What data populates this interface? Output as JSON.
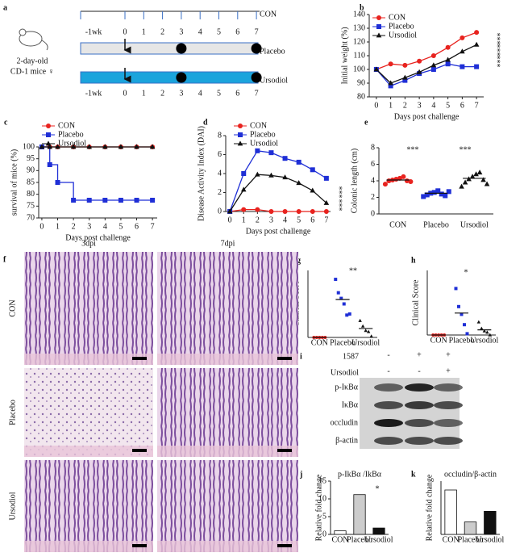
{
  "timeline": {
    "label": "a",
    "mouse": [
      "2-day-old",
      "CD-1 mice ♀"
    ],
    "days": [
      "-1wk",
      "0",
      "1",
      "2",
      "3",
      "4",
      "5",
      "6",
      "7"
    ],
    "groups": [
      {
        "name": "CON"
      },
      {
        "name": "Placebo",
        "dots": [
          3,
          7
        ]
      },
      {
        "name": "Ursodiol",
        "dots": [
          3,
          7
        ]
      }
    ]
  },
  "chart_data": [
    {
      "label": "b",
      "type": "line",
      "ylabel": "Initial weight (%)",
      "xlabel": "Days post challenge",
      "x": [
        0,
        1,
        2,
        3,
        4,
        5,
        6,
        7
      ],
      "xlim": [
        -0.5,
        7.5
      ],
      "xticks": [
        0,
        1,
        2,
        3,
        4,
        5,
        6,
        7
      ],
      "ylim": [
        80,
        140
      ],
      "yticks": [
        80,
        90,
        100,
        110,
        120,
        130,
        140
      ],
      "legend": "upper left",
      "annotations": [
        "***",
        "***",
        "***"
      ],
      "series": [
        {
          "name": "CON",
          "color": "#e8231f",
          "marker": "circle",
          "values": [
            100,
            104,
            103,
            106,
            110,
            116,
            123,
            127
          ]
        },
        {
          "name": "Placebo",
          "color": "#1f2fd6",
          "marker": "square",
          "values": [
            100,
            88,
            92,
            97,
            100,
            104,
            102,
            102
          ]
        },
        {
          "name": "Ursodiol",
          "color": "#111111",
          "marker": "triangle",
          "values": [
            100,
            90,
            94,
            98,
            103,
            107,
            113,
            118
          ]
        }
      ]
    },
    {
      "label": "c",
      "type": "line",
      "step": true,
      "ylabel": "survival of mice (%)",
      "xlabel": "Days post challenge",
      "x": [
        0,
        0.5,
        1,
        2,
        3,
        4,
        5,
        6,
        7
      ],
      "xlim": [
        -0.2,
        7.3
      ],
      "xticks": [
        0,
        1,
        2,
        3,
        4,
        5,
        6,
        7
      ],
      "ylim": [
        70,
        100
      ],
      "yticks": [
        70,
        75,
        80,
        85,
        90,
        95,
        100
      ],
      "legend": "upper left",
      "series": [
        {
          "name": "CON",
          "color": "#e8231f",
          "marker": "circle",
          "values": [
            100,
            100,
            100,
            100,
            100,
            100,
            100,
            100,
            100
          ]
        },
        {
          "name": "Placebo",
          "color": "#1f2fd6",
          "marker": "square",
          "values": [
            100,
            92.5,
            85,
            77.5,
            77.5,
            77.5,
            77.5,
            77.5,
            77.5
          ]
        },
        {
          "name": "Ursodiol",
          "color": "#111111",
          "marker": "triangle",
          "values": [
            100,
            100,
            100,
            100,
            100,
            100,
            100,
            100,
            100
          ]
        }
      ]
    },
    {
      "label": "d",
      "type": "line",
      "ylabel": "Disease Activity Index (DAI)",
      "xlabel": "Days post challenge",
      "x": [
        0,
        1,
        2,
        3,
        4,
        5,
        6,
        7
      ],
      "xlim": [
        -0.3,
        7.3
      ],
      "xticks": [
        0,
        1,
        2,
        3,
        4,
        5,
        6,
        7
      ],
      "ylim": [
        0,
        8
      ],
      "yticks": [
        0,
        2,
        4,
        6,
        8
      ],
      "legend": "upper left",
      "annotations": [
        "***",
        "***"
      ],
      "series": [
        {
          "name": "CON",
          "color": "#e8231f",
          "marker": "circle",
          "values": [
            0,
            0.2,
            0.2,
            0,
            0,
            0,
            0,
            0
          ]
        },
        {
          "name": "Placebo",
          "color": "#1f2fd6",
          "marker": "square",
          "values": [
            0,
            4,
            6.4,
            6.2,
            5.6,
            5.2,
            4.4,
            3.5
          ]
        },
        {
          "name": "Ursodiol",
          "color": "#111111",
          "marker": "triangle",
          "values": [
            0,
            2.3,
            3.9,
            3.8,
            3.6,
            3.0,
            2.2,
            0.9
          ]
        }
      ]
    },
    {
      "label": "e",
      "type": "dot_plot",
      "ylabel": "Colonic length (cm)",
      "categories": [
        "CON",
        "Placebo",
        "Ursodiol"
      ],
      "ylim": [
        0,
        8
      ],
      "yticks": [
        0,
        2,
        4,
        6,
        8
      ],
      "colors": [
        "#e8231f",
        "#1f2fd6",
        "#111111"
      ],
      "markers": [
        "circle",
        "square",
        "triangle"
      ],
      "points": [
        [
          3.6,
          4.0,
          4.1,
          4.2,
          4.3,
          4.5,
          4.0,
          3.9
        ],
        [
          2.1,
          2.3,
          2.5,
          2.6,
          2.8,
          2.4,
          2.2,
          2.7
        ],
        [
          3.3,
          3.8,
          4.2,
          4.5,
          4.8,
          5.0,
          4.1,
          3.6
        ]
      ],
      "means": [
        4.1,
        2.5,
        4.3
      ],
      "annotations": [
        "***",
        "***"
      ]
    },
    {
      "label": "g",
      "type": "dot_plot",
      "ylabel": "Clinical Score",
      "categories": [
        "CON",
        "Placebo",
        "Ursodiol"
      ],
      "ylim": [
        0,
        6
      ],
      "colors": [
        "#e8231f",
        "#1f2fd6",
        "#111111"
      ],
      "markers": [
        "circle",
        "square",
        "triangle"
      ],
      "points": [
        [
          0,
          0,
          0,
          0,
          0
        ],
        [
          5.2,
          4.0,
          3.5,
          3.0,
          2.0,
          2.1
        ],
        [
          1.5,
          1.0,
          0.6,
          0.5,
          0.1
        ]
      ],
      "means": [
        0,
        3.4,
        0.8
      ],
      "annotations": [
        "**"
      ]
    },
    {
      "label": "h",
      "type": "dot_plot",
      "ylabel": "Clinical Score",
      "categories": [
        "CON",
        "Placebo",
        "Ursodiol"
      ],
      "ylim": [
        0,
        5
      ],
      "colors": [
        "#e8231f",
        "#1f2fd6",
        "#111111"
      ],
      "markers": [
        "circle",
        "square",
        "triangle"
      ],
      "points": [
        [
          0,
          0,
          0,
          0,
          0
        ],
        [
          3.6,
          2.2,
          1.6,
          0.8,
          0.1
        ],
        [
          1.0,
          0.5,
          0.3,
          0.2,
          0.0
        ]
      ],
      "means": [
        0,
        1.7,
        0.4
      ],
      "annotations": [
        "*"
      ]
    },
    {
      "label": "j",
      "type": "bar",
      "title": "p-IkBα /IkBα",
      "ylabel": "Relative fold change",
      "categories": [
        "CON",
        "Placebo",
        "Ursodiol"
      ],
      "values": [
        1,
        11.2,
        1.8
      ],
      "colors": [
        "#ffffff",
        "#cccccc",
        "#111111"
      ],
      "ylim": [
        0,
        15
      ],
      "yticks": [
        0,
        5,
        10,
        15
      ],
      "annotations": [
        "*"
      ]
    },
    {
      "label": "k",
      "type": "bar",
      "title": "occludin/β-actin",
      "ylabel": "Relative fold change",
      "categories": [
        "CON",
        "Placebo",
        "Ursodiol"
      ],
      "values": [
        1,
        0.28,
        0.52
      ],
      "colors": [
        "#ffffff",
        "#cccccc",
        "#111111"
      ],
      "ylim": [
        0,
        1.2
      ]
    }
  ],
  "histology": {
    "label": "f",
    "columns": [
      "3dpi",
      "7dpi"
    ],
    "rows": [
      "CON",
      "Placebo",
      "Ursodiol"
    ]
  },
  "western_blot": {
    "label": "i",
    "treatments": [
      {
        "name": "1587",
        "signs": [
          "-",
          "+",
          "+"
        ]
      },
      {
        "name": "Ursodiol",
        "signs": [
          "-",
          "-",
          "+"
        ]
      }
    ],
    "proteins": [
      "p-IκBα",
      "IκBα",
      "occludin",
      "β-actin"
    ]
  }
}
